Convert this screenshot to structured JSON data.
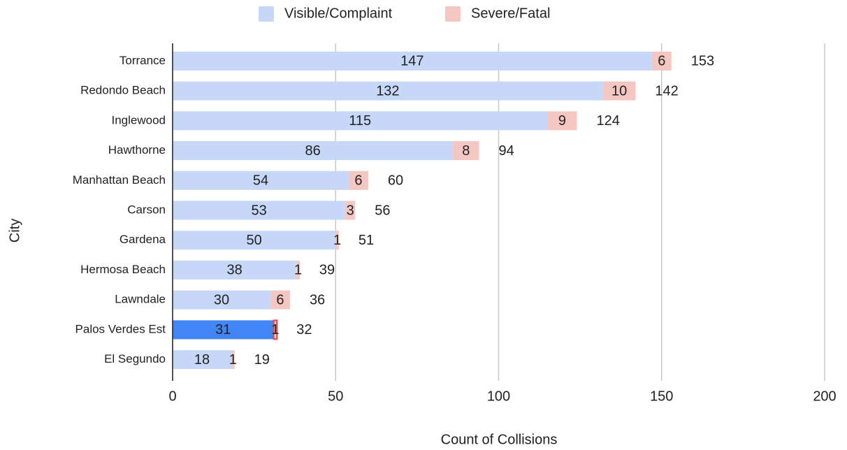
{
  "chart_data": {
    "type": "stacked_barh",
    "x_label": "Count of Collisions",
    "y_label": "City",
    "categories": [
      "Torrance",
      "Redondo Beach",
      "Inglewood",
      "Hawthorne",
      "Manhattan Beach",
      "Carson",
      "Gardena",
      "Hermosa Beach",
      "Lawndale",
      "Palos Verdes Est",
      "El Segundo"
    ],
    "series": [
      {
        "name": "Visible/Complaint",
        "color": "#c6d7f7",
        "values": [
          147,
          132,
          115,
          86,
          54,
          53,
          50,
          38,
          30,
          31,
          18
        ]
      },
      {
        "name": "Severe/Fatal",
        "color": "#f4c7c3",
        "values": [
          6,
          10,
          9,
          8,
          6,
          3,
          1,
          1,
          6,
          1,
          1
        ]
      }
    ],
    "totals": [
      153,
      142,
      124,
      94,
      60,
      56,
      51,
      39,
      36,
      32,
      19
    ],
    "highlight_category": "Palos Verdes Est",
    "highlight_color": "#4285f4",
    "xlim": [
      0,
      200
    ],
    "xticks": [
      0,
      50,
      100,
      150,
      200
    ],
    "grid": true,
    "legend": "top"
  }
}
